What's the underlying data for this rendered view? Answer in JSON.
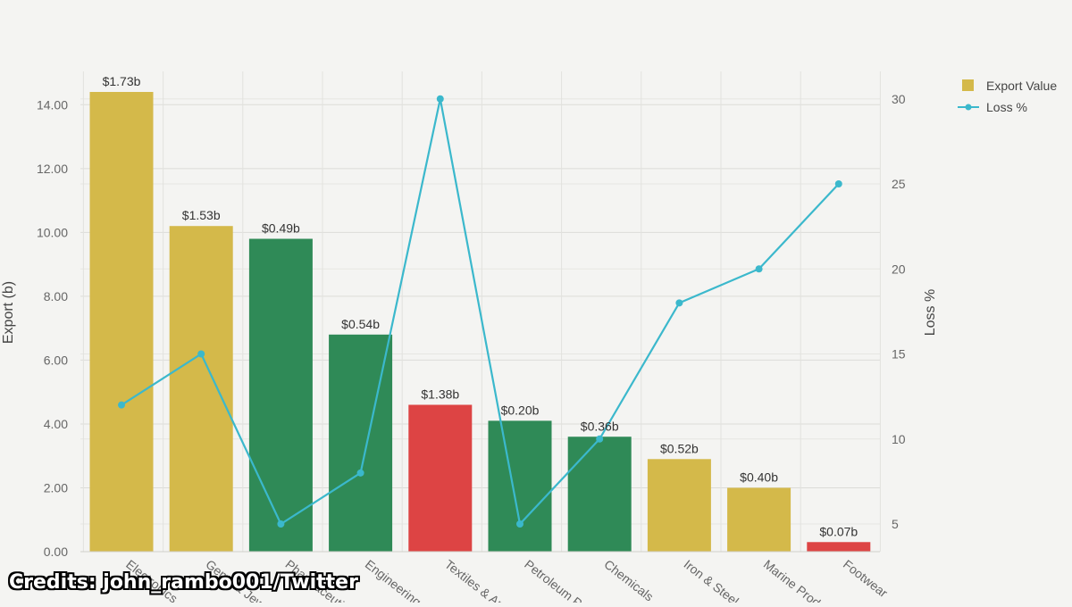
{
  "chart_data": {
    "type": "bar",
    "categories": [
      "Electronics",
      "Gems & Jewellery",
      "Pharmaceuticals",
      "Engineering Goods",
      "Textiles & Apparel",
      "Petroleum Products",
      "Chemicals",
      "Iron & Steel",
      "Marine Products",
      "Footwear"
    ],
    "series": [
      {
        "name": "Export Value",
        "type": "bar",
        "axis": "left",
        "values": [
          14.4,
          10.2,
          9.8,
          6.8,
          4.6,
          4.1,
          3.6,
          2.9,
          2.0,
          0.3
        ],
        "colors": [
          "#d4b94a",
          "#d4b94a",
          "#2f8a57",
          "#2f8a57",
          "#dd4444",
          "#2f8a57",
          "#2f8a57",
          "#d4b94a",
          "#d4b94a",
          "#dd4444"
        ],
        "data_labels": [
          "$1.73b",
          "$1.53b",
          "$0.49b",
          "$0.54b",
          "$1.38b",
          "$0.20b",
          "$0.36b",
          "$0.52b",
          "$0.40b",
          "$0.07b"
        ]
      },
      {
        "name": "Loss %",
        "type": "line",
        "axis": "right",
        "values": [
          12,
          15,
          5,
          8,
          30,
          5,
          10,
          18,
          20,
          25
        ],
        "color": "#3bb8cc"
      }
    ],
    "ylabel": "Export (b)",
    "y2label": "Loss %",
    "ylim": [
      0,
      14.4
    ],
    "y2lim": [
      3,
      30
    ],
    "yticks": [
      "0.00",
      "2.00",
      "4.00",
      "6.00",
      "8.00",
      "10.00",
      "12.00",
      "14.00"
    ],
    "y2ticks": [
      "5",
      "10",
      "15",
      "20",
      "25",
      "30"
    ],
    "grid": true,
    "legend_position": "top-right"
  },
  "credit": "Credits: john_rambo001/Twitter"
}
